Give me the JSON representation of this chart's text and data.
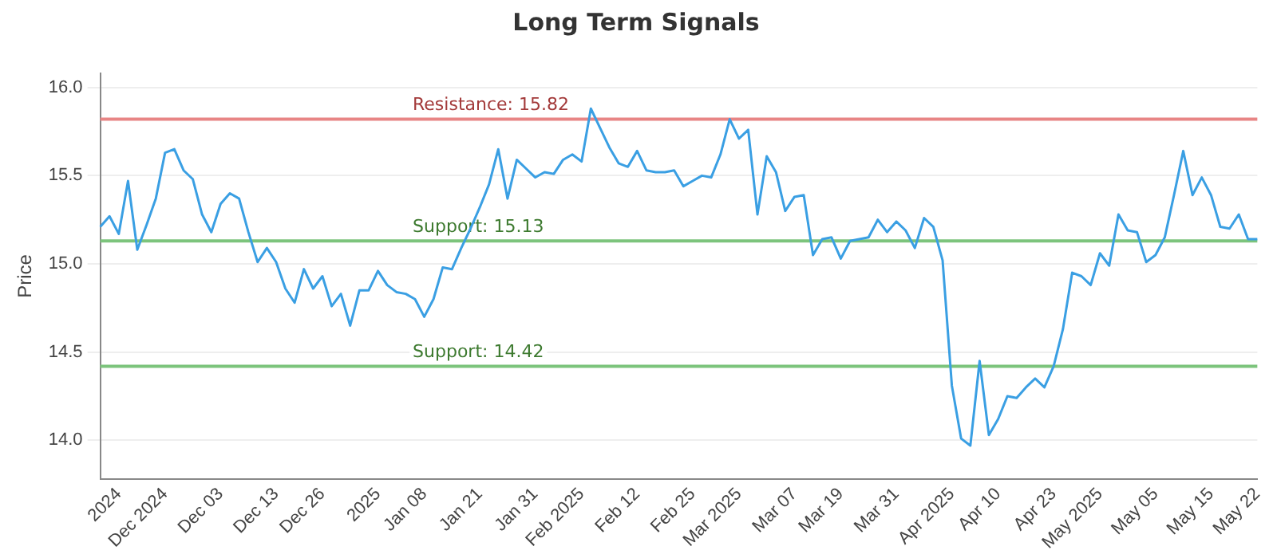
{
  "chart_data": {
    "type": "line",
    "title": "Long Term Signals",
    "ylabel": "Price",
    "categories": [
      null,
      null,
      "2024",
      null,
      null,
      null,
      null,
      "Dec 2024",
      null,
      null,
      null,
      null,
      null,
      "Dec 03",
      null,
      null,
      null,
      null,
      null,
      "Dec 13",
      null,
      null,
      null,
      null,
      "Dec 26",
      null,
      null,
      null,
      null,
      null,
      "2025",
      null,
      null,
      null,
      null,
      "Jan 08",
      null,
      null,
      null,
      null,
      null,
      "Jan 21",
      null,
      null,
      null,
      null,
      null,
      "Jan 31",
      null,
      null,
      null,
      null,
      "Feb 2025",
      null,
      null,
      null,
      null,
      null,
      "Feb 12",
      null,
      null,
      null,
      null,
      null,
      "Feb 25",
      null,
      null,
      null,
      null,
      "Mar 2025",
      null,
      null,
      null,
      null,
      null,
      "Mar 07",
      null,
      null,
      null,
      null,
      "Mar 19",
      null,
      null,
      null,
      null,
      null,
      "Mar 31",
      null,
      null,
      null,
      null,
      null,
      "Apr 2025",
      null,
      null,
      null,
      null,
      "Apr 10",
      null,
      null,
      null,
      null,
      null,
      "Apr 23",
      null,
      null,
      null,
      null,
      "May 2025",
      null,
      null,
      null,
      null,
      null,
      "May 05",
      null,
      null,
      null,
      null,
      null,
      "May 15",
      null,
      null,
      null,
      null,
      "May 22"
    ],
    "series": [
      {
        "color": "#3a9fe3",
        "values": [
          15.21,
          15.27,
          15.17,
          15.47,
          15.08,
          15.22,
          15.37,
          15.63,
          15.65,
          15.53,
          15.48,
          15.28,
          15.18,
          15.34,
          15.4,
          15.37,
          15.18,
          15.01,
          15.09,
          15.01,
          14.86,
          14.78,
          14.97,
          14.86,
          14.93,
          14.76,
          14.83,
          14.65,
          14.85,
          14.85,
          14.96,
          14.88,
          14.84,
          14.83,
          14.8,
          14.7,
          14.8,
          14.98,
          14.97,
          15.09,
          15.2,
          15.32,
          15.45,
          15.65,
          15.37,
          15.59,
          15.54,
          15.49,
          15.52,
          15.51,
          15.59,
          15.62,
          15.58,
          15.88,
          15.77,
          15.66,
          15.57,
          15.55,
          15.64,
          15.53,
          15.52,
          15.52,
          15.53,
          15.44,
          15.47,
          15.5,
          15.49,
          15.62,
          15.82,
          15.71,
          15.76,
          15.28,
          15.61,
          15.52,
          15.3,
          15.38,
          15.39,
          15.05,
          15.14,
          15.15,
          15.03,
          15.13,
          15.14,
          15.15,
          15.25,
          15.18,
          15.24,
          15.19,
          15.09,
          15.26,
          15.21,
          15.02,
          14.31,
          14.01,
          13.97,
          14.45,
          14.03,
          14.12,
          14.25,
          14.24,
          14.3,
          14.35,
          14.3,
          14.42,
          14.63,
          14.95,
          14.93,
          14.88,
          15.06,
          14.99,
          15.28,
          15.19,
          15.18,
          15.01,
          15.05,
          15.15,
          15.39,
          15.64,
          15.39,
          15.49,
          15.39,
          15.21,
          15.2,
          15.28,
          15.14,
          15.14
        ]
      }
    ],
    "ylim": [
      13.78,
      16.08
    ],
    "yticks": [
      {
        "value": 14,
        "label": "14.0"
      },
      {
        "value": 14.5,
        "label": "14.5"
      },
      {
        "value": 15,
        "label": "15.0"
      },
      {
        "value": 15.5,
        "label": "15.5"
      },
      {
        "value": 16,
        "label": "16.0"
      }
    ],
    "grid": "y",
    "legend": false,
    "marker": "none",
    "line_style": "solid",
    "ref_lines": [
      {
        "axis": "y",
        "value": 15.82,
        "label": "Resistance: 15.82",
        "color": "#e88585"
      },
      {
        "axis": "y",
        "value": 15.13,
        "label": "Support: 15.13",
        "color": "#7cc47c"
      },
      {
        "axis": "y",
        "value": 14.42,
        "label": "Support: 14.42",
        "color": "#7cc47c"
      }
    ]
  }
}
